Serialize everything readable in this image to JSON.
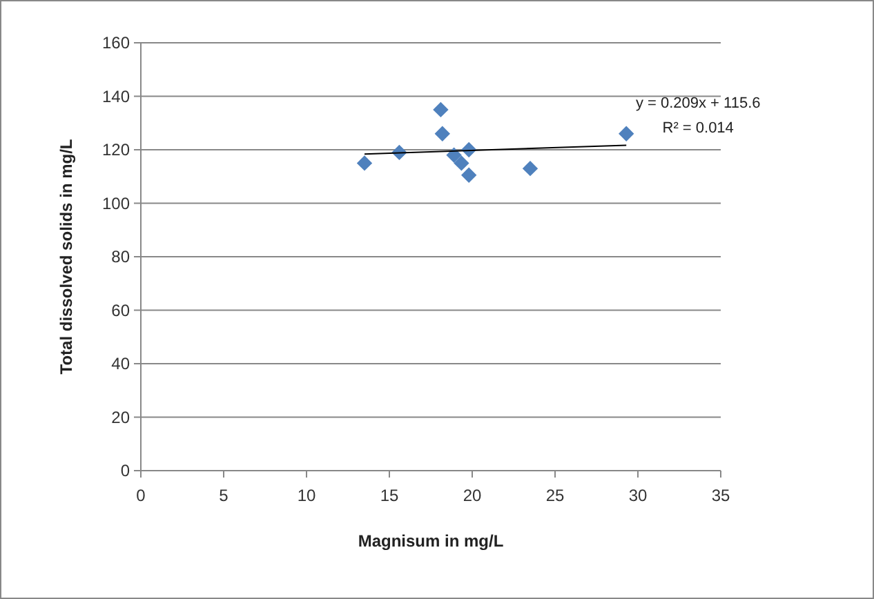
{
  "chart_data": {
    "type": "scatter",
    "xlabel": "Magnisum in mg/L",
    "ylabel": "Total dissolved solids in mg/L",
    "xlim": [
      0,
      35
    ],
    "xticks": [
      0,
      5,
      10,
      15,
      20,
      25,
      30,
      35
    ],
    "ylim": [
      0,
      160
    ],
    "yticks": [
      0,
      20,
      40,
      60,
      80,
      100,
      120,
      140,
      160
    ],
    "grid": "y",
    "marker": "diamond",
    "series": [
      {
        "color": "#4f81bd",
        "x": [
          13.5,
          15.6,
          18.1,
          18.2,
          18.9,
          19.35,
          19.8,
          19.8,
          23.5,
          29.3
        ],
        "values": [
          115,
          119,
          135,
          126,
          118,
          115,
          120,
          110.5,
          113,
          126
        ]
      },
      {
        "type": "line",
        "color": "#000000",
        "line_style": "solid",
        "marker": "none",
        "x": [
          13.5,
          29.3
        ],
        "values": [
          118.4,
          121.7
        ]
      }
    ],
    "annotations": [
      "y = 0.209x + 115.6",
      "R² = 0.014"
    ]
  }
}
